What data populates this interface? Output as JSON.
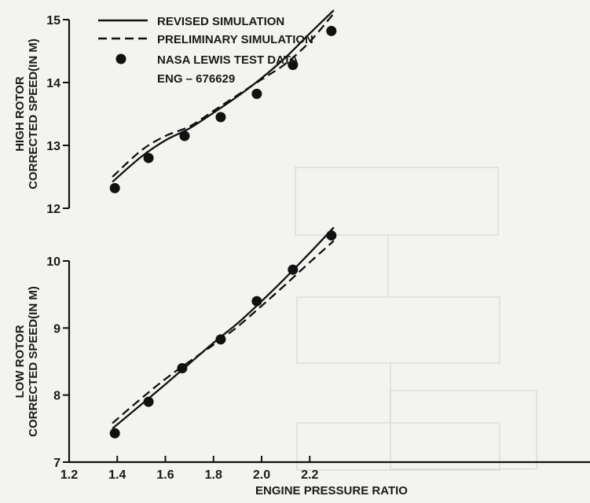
{
  "chart_data": [
    {
      "type": "line",
      "ylabel_line1": "HIGH ROTOR",
      "ylabel_line2": "CORRECTED SPEED(IN M)",
      "xlim": [
        1.2,
        2.3
      ],
      "ylim": [
        12,
        15
      ],
      "yticks": [
        "12",
        "13",
        "14",
        "15"
      ],
      "series": [
        {
          "name": "REVISED SIMULATION",
          "style": "solid",
          "x": [
            1.38,
            1.5,
            1.6,
            1.7,
            1.8,
            1.9,
            2.0,
            2.1,
            2.2,
            2.3
          ],
          "y": [
            12.42,
            12.82,
            13.08,
            13.27,
            13.52,
            13.78,
            14.07,
            14.4,
            14.78,
            15.15
          ]
        },
        {
          "name": "PRELIMINARY SIMULATION",
          "style": "dashed",
          "x": [
            1.38,
            1.5,
            1.6,
            1.7,
            1.8,
            1.9,
            2.0,
            2.1,
            2.2,
            2.3
          ],
          "y": [
            12.5,
            12.92,
            13.15,
            13.3,
            13.55,
            13.8,
            14.05,
            14.3,
            14.65,
            15.1
          ]
        },
        {
          "name": "NASA LEWIS TEST DATA",
          "style": "points",
          "x": [
            1.39,
            1.53,
            1.68,
            1.83,
            1.98,
            2.13,
            2.29
          ],
          "y": [
            12.32,
            12.8,
            13.15,
            13.45,
            13.82,
            14.28,
            14.82
          ]
        }
      ],
      "legend_extra": "ENG – 676629"
    },
    {
      "type": "line",
      "ylabel_line1": "LOW ROTOR",
      "ylabel_line2": "CORRECTED SPEED(IN M)",
      "xlabel": "ENGINE PRESSURE RATIO",
      "xlim": [
        1.2,
        2.3
      ],
      "ylim": [
        7,
        10
      ],
      "xticks": [
        "1.2",
        "1.4",
        "1.6",
        "1.8",
        "2.0",
        "2.2"
      ],
      "yticks": [
        "7",
        "8",
        "9",
        "10"
      ],
      "series": [
        {
          "name": "REVISED SIMULATION",
          "style": "solid",
          "x": [
            1.38,
            1.5,
            1.6,
            1.7,
            1.8,
            1.9,
            2.0,
            2.1,
            2.2,
            2.3
          ],
          "y": [
            7.5,
            7.86,
            8.16,
            8.47,
            8.78,
            9.07,
            9.4,
            9.75,
            10.12,
            10.5
          ]
        },
        {
          "name": "PRELIMINARY SIMULATION",
          "style": "dashed",
          "x": [
            1.38,
            1.5,
            1.6,
            1.7,
            1.8,
            1.9,
            2.0,
            2.1,
            2.2,
            2.3
          ],
          "y": [
            7.58,
            7.95,
            8.24,
            8.5,
            8.75,
            9.02,
            9.33,
            9.65,
            9.98,
            10.3
          ]
        },
        {
          "name": "NASA LEWIS TEST DATA",
          "style": "points",
          "x": [
            1.39,
            1.53,
            1.67,
            1.83,
            1.98,
            2.13,
            2.29
          ],
          "y": [
            7.43,
            7.9,
            8.4,
            8.83,
            9.4,
            9.87,
            10.38
          ]
        }
      ]
    }
  ]
}
